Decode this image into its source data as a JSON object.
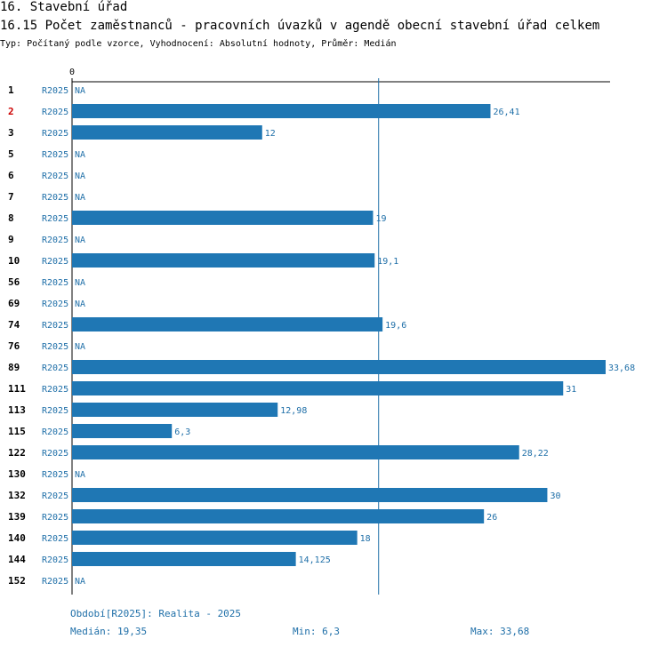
{
  "header": {
    "section": "16. Stavební úřad",
    "title": "16.15 Počet zaměstnanců - pracovních úvazků v agendě obecní stavební úřad celkem",
    "subtitle": "Typ: Počítaný podle vzorce, Vyhodnocení: Absolutní hodnoty, Průměr: Medián"
  },
  "colors": {
    "bar": "#1f77b4",
    "label": "#1f6fa8",
    "highlight": "#cc0000",
    "median_line": "#1f6fa8"
  },
  "chart_data": {
    "type": "bar",
    "orientation": "horizontal",
    "xlim": [
      0,
      35
    ],
    "axis_zero_label": "0",
    "series_label": "R2025",
    "highlight_row": "2",
    "median": 19.35,
    "rows": [
      {
        "id": "1",
        "period": "R2025",
        "value": null,
        "label": "NA"
      },
      {
        "id": "2",
        "period": "R2025",
        "value": 26.41,
        "label": "26,41"
      },
      {
        "id": "3",
        "period": "R2025",
        "value": 12,
        "label": "12"
      },
      {
        "id": "5",
        "period": "R2025",
        "value": null,
        "label": "NA"
      },
      {
        "id": "6",
        "period": "R2025",
        "value": null,
        "label": "NA"
      },
      {
        "id": "7",
        "period": "R2025",
        "value": null,
        "label": "NA"
      },
      {
        "id": "8",
        "period": "R2025",
        "value": 19,
        "label": "19"
      },
      {
        "id": "9",
        "period": "R2025",
        "value": null,
        "label": "NA"
      },
      {
        "id": "10",
        "period": "R2025",
        "value": 19.1,
        "label": "19,1"
      },
      {
        "id": "56",
        "period": "R2025",
        "value": null,
        "label": "NA"
      },
      {
        "id": "69",
        "period": "R2025",
        "value": null,
        "label": "NA"
      },
      {
        "id": "74",
        "period": "R2025",
        "value": 19.6,
        "label": "19,6"
      },
      {
        "id": "76",
        "period": "R2025",
        "value": null,
        "label": "NA"
      },
      {
        "id": "89",
        "period": "R2025",
        "value": 33.68,
        "label": "33,68"
      },
      {
        "id": "111",
        "period": "R2025",
        "value": 31,
        "label": "31"
      },
      {
        "id": "113",
        "period": "R2025",
        "value": 12.98,
        "label": "12,98"
      },
      {
        "id": "115",
        "period": "R2025",
        "value": 6.3,
        "label": "6,3"
      },
      {
        "id": "122",
        "period": "R2025",
        "value": 28.22,
        "label": "28,22"
      },
      {
        "id": "130",
        "period": "R2025",
        "value": null,
        "label": "NA"
      },
      {
        "id": "132",
        "period": "R2025",
        "value": 30,
        "label": "30"
      },
      {
        "id": "139",
        "period": "R2025",
        "value": 26,
        "label": "26"
      },
      {
        "id": "140",
        "period": "R2025",
        "value": 18,
        "label": "18"
      },
      {
        "id": "144",
        "period": "R2025",
        "value": 14.125,
        "label": "14,125"
      },
      {
        "id": "152",
        "period": "R2025",
        "value": null,
        "label": "NA"
      }
    ]
  },
  "footer": {
    "period": "Období[R2025]: Realita - 2025",
    "median": "Medián: 19,35",
    "min": "Min: 6,3",
    "max": "Max: 33,68"
  }
}
